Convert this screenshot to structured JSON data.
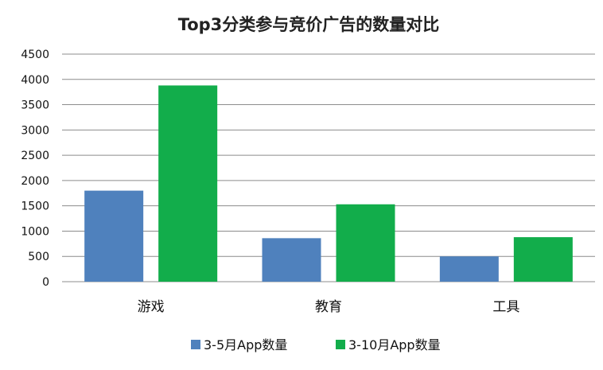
{
  "chart_data": {
    "type": "bar",
    "title": "Top3分类参与竞价广告的数量对比",
    "categories": [
      "游戏",
      "教育",
      "工具"
    ],
    "series": [
      {
        "name": "3-5月App数量",
        "color": "#4f81bd",
        "values": [
          1800,
          860,
          500
        ]
      },
      {
        "name": "3-10月App数量",
        "color": "#12ad4b",
        "values": [
          3880,
          1530,
          880
        ]
      }
    ],
    "ylim": [
      0,
      4500
    ],
    "yticks": [
      0,
      500,
      1000,
      1500,
      2000,
      2500,
      3000,
      3500,
      4000,
      4500
    ],
    "grid": true,
    "legend_position": "bottom"
  }
}
